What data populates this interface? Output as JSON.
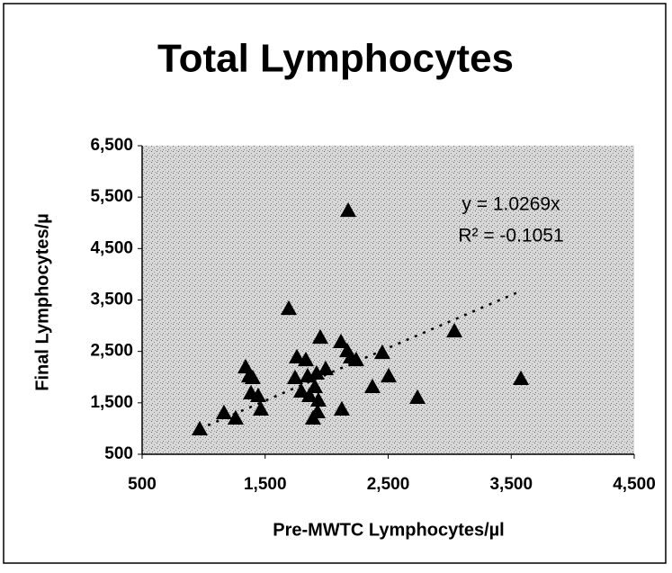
{
  "chart_data": {
    "type": "scatter",
    "title": "Total Lymphocytes",
    "x_label": "Pre-MWTC Lymphocytes/µl",
    "y_label": "Final Lymphocytes/µ",
    "marker": "triangle",
    "color": "#000000",
    "x": [
      968,
      1165,
      1260,
      1341,
      1370,
      1385,
      1399,
      1443,
      1465,
      1692,
      1758,
      1743,
      1794,
      1831,
      1845,
      1860,
      1889,
      1904,
      1918,
      1933,
      1926,
      1948,
      1992,
      2116,
      2167,
      2197,
      2240,
      2175,
      2123,
      2372,
      2452,
      2504,
      2738,
      3038,
      3579
    ],
    "y": [
      993,
      1308,
      1203,
      2199,
      2024,
      1692,
      1990,
      1640,
      1378,
      3336,
      2392,
      1990,
      1727,
      2339,
      2024,
      1640,
      1203,
      1815,
      2077,
      1552,
      1325,
      2776,
      2164,
      2689,
      2514,
      2392,
      2339,
      5241,
      1378,
      1815,
      2479,
      2024,
      1605,
      2898,
      1972
    ],
    "xlim": [
      500,
      4500
    ],
    "xticks": [
      500,
      {
        "value": 1500,
        "label": "1,500"
      },
      {
        "value": 2500,
        "label": "2,500"
      },
      {
        "value": 3500,
        "label": "3,500"
      },
      {
        "value": 4500,
        "label": "4,500"
      }
    ],
    "ylim": [
      500,
      6500
    ],
    "yticks": [
      500,
      {
        "value": 1500,
        "label": "1,500"
      },
      {
        "value": 2500,
        "label": "2,500"
      },
      {
        "value": 3500,
        "label": "3,500"
      },
      {
        "value": 4500,
        "label": "4,500"
      },
      {
        "value": 5500,
        "label": "5,500"
      },
      {
        "value": 6500,
        "label": "6,500"
      }
    ],
    "trendline": {
      "slope": {
        "value": 1.0269,
        "label": "y = 1.0269x"
      },
      "r2": {
        "value": -0.1051,
        "label": "R² = -0.1051"
      }
    }
  }
}
